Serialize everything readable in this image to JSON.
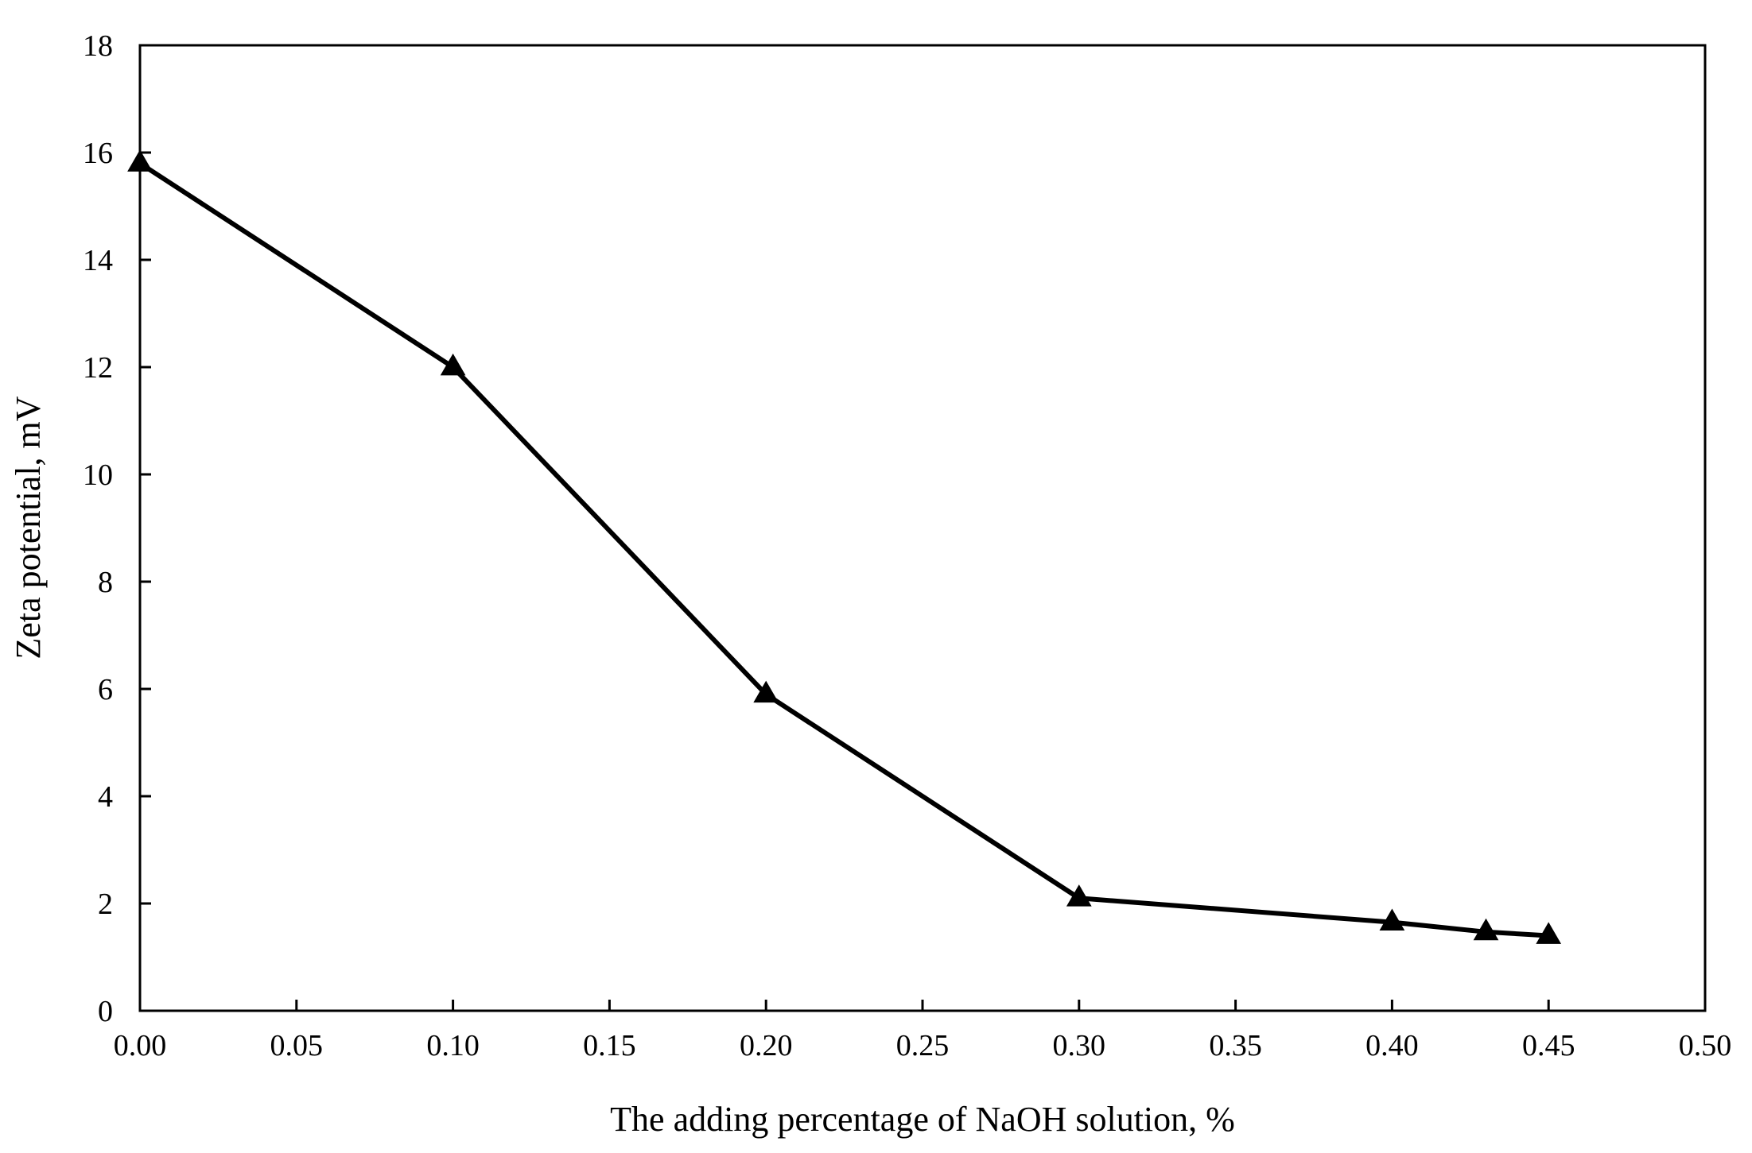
{
  "chart_data": {
    "type": "line",
    "title": "",
    "xlabel": "The adding percentage of NaOH solution, %",
    "ylabel": "Zeta potential, mV",
    "xlim": [
      0,
      0.5
    ],
    "ylim": [
      0,
      18
    ],
    "x_ticks": [
      "0.00",
      "0.05",
      "0.10",
      "0.15",
      "0.20",
      "0.25",
      "0.30",
      "0.35",
      "0.40",
      "0.45",
      "0.50"
    ],
    "y_ticks": [
      "0",
      "2",
      "4",
      "6",
      "8",
      "10",
      "12",
      "14",
      "16",
      "18"
    ],
    "grid": false,
    "legend": "none",
    "series": [
      {
        "marker": "triangle",
        "color": "#000000",
        "points": [
          {
            "x": 0.0,
            "y": 15.8
          },
          {
            "x": 0.1,
            "y": 12.0
          },
          {
            "x": 0.2,
            "y": 5.9
          },
          {
            "x": 0.3,
            "y": 2.1
          },
          {
            "x": 0.4,
            "y": 1.65
          },
          {
            "x": 0.43,
            "y": 1.47
          },
          {
            "x": 0.45,
            "y": 1.4
          }
        ]
      }
    ]
  }
}
